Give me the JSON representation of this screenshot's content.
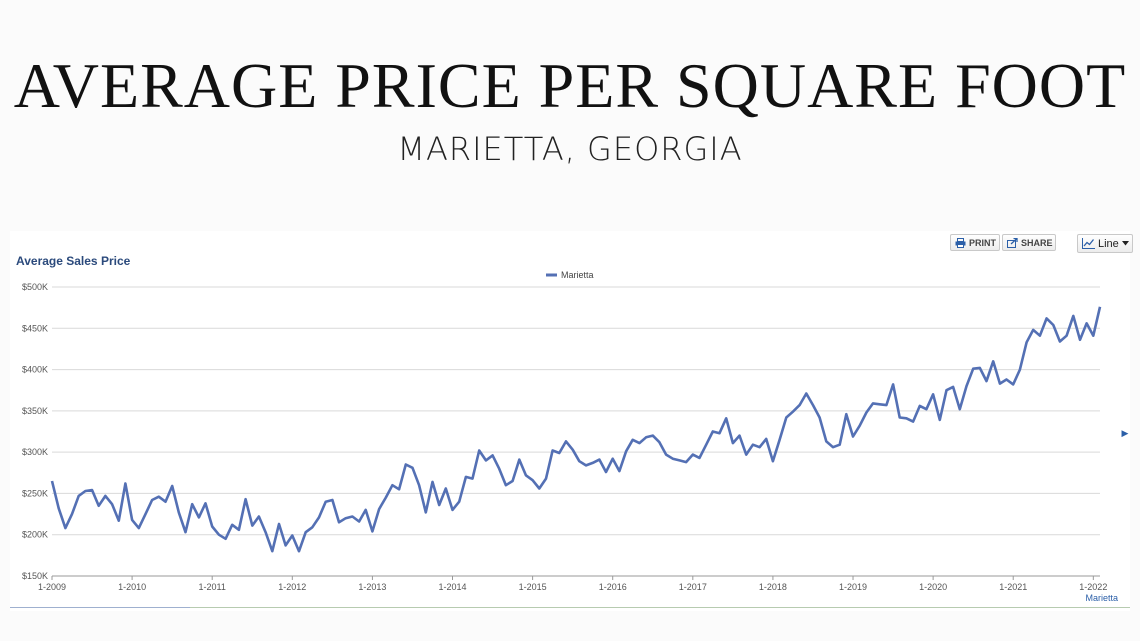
{
  "page": {
    "title": "AVERAGE PRICE PER SQUARE FOOT",
    "subtitle": "MARIETTA, GEORGIA"
  },
  "toolbar": {
    "print_label": "PRINT",
    "share_label": "SHARE",
    "chart_type_label": "Line",
    "icons": [
      "printer-icon",
      "share-icon",
      "line-chart-icon",
      "caret-down-icon"
    ]
  },
  "chart_data": {
    "type": "line",
    "title": "Average Sales Price",
    "xlabel": "",
    "ylabel": "",
    "ylim": [
      150000,
      500000
    ],
    "yticks": [
      "$150K",
      "$200K",
      "$250K",
      "$300K",
      "$350K",
      "$400K",
      "$450K",
      "$500K"
    ],
    "xticks": [
      "1-2009",
      "1-2010",
      "1-2011",
      "1-2012",
      "1-2013",
      "1-2014",
      "1-2015",
      "1-2016",
      "1-2017",
      "1-2018",
      "1-2019",
      "1-2020",
      "1-2021",
      "1-2022"
    ],
    "legend": {
      "position": "top-center",
      "entries": [
        "Marietta"
      ]
    },
    "corner_label": "Marietta",
    "grid": true,
    "colors": {
      "series": "#5470b4",
      "grid": "#d9d9d9",
      "heading": "#2b4a7c"
    },
    "x_start": "1-2009",
    "x_step": "1 month",
    "series": [
      {
        "name": "Marietta",
        "values": [
          265000,
          232000,
          208000,
          225000,
          247000,
          253000,
          254000,
          235000,
          247000,
          237000,
          217000,
          262000,
          218000,
          208000,
          225000,
          242000,
          246000,
          240000,
          259000,
          227000,
          203000,
          237000,
          221000,
          238000,
          210000,
          200000,
          195000,
          212000,
          206000,
          243000,
          211000,
          222000,
          203000,
          180000,
          213000,
          187000,
          199000,
          180000,
          203000,
          209000,
          221000,
          240000,
          242000,
          215000,
          220000,
          222000,
          216000,
          230000,
          204000,
          231000,
          245000,
          260000,
          255000,
          285000,
          281000,
          260000,
          227000,
          264000,
          236000,
          256000,
          230000,
          240000,
          270000,
          268000,
          302000,
          290000,
          296000,
          280000,
          260000,
          265000,
          291000,
          272000,
          266000,
          256000,
          268000,
          302000,
          299000,
          313000,
          303000,
          289000,
          284000,
          287000,
          291000,
          276000,
          292000,
          277000,
          301000,
          315000,
          311000,
          318000,
          320000,
          312000,
          297000,
          292000,
          290000,
          288000,
          297000,
          293000,
          309000,
          325000,
          323000,
          341000,
          311000,
          320000,
          297000,
          309000,
          306000,
          316000,
          289000,
          315000,
          342000,
          349000,
          357000,
          371000,
          357000,
          342000,
          313000,
          306000,
          309000,
          346000,
          319000,
          332000,
          348000,
          359000,
          358000,
          357000,
          382000,
          342000,
          341000,
          337000,
          356000,
          352000,
          370000,
          339000,
          375000,
          379000,
          352000,
          380000,
          401000,
          402000,
          386000,
          410000,
          383000,
          388000,
          382000,
          400000,
          433000,
          448000,
          441000,
          462000,
          454000,
          434000,
          441000,
          465000,
          436000,
          456000,
          441000,
          476000
        ]
      }
    ]
  }
}
